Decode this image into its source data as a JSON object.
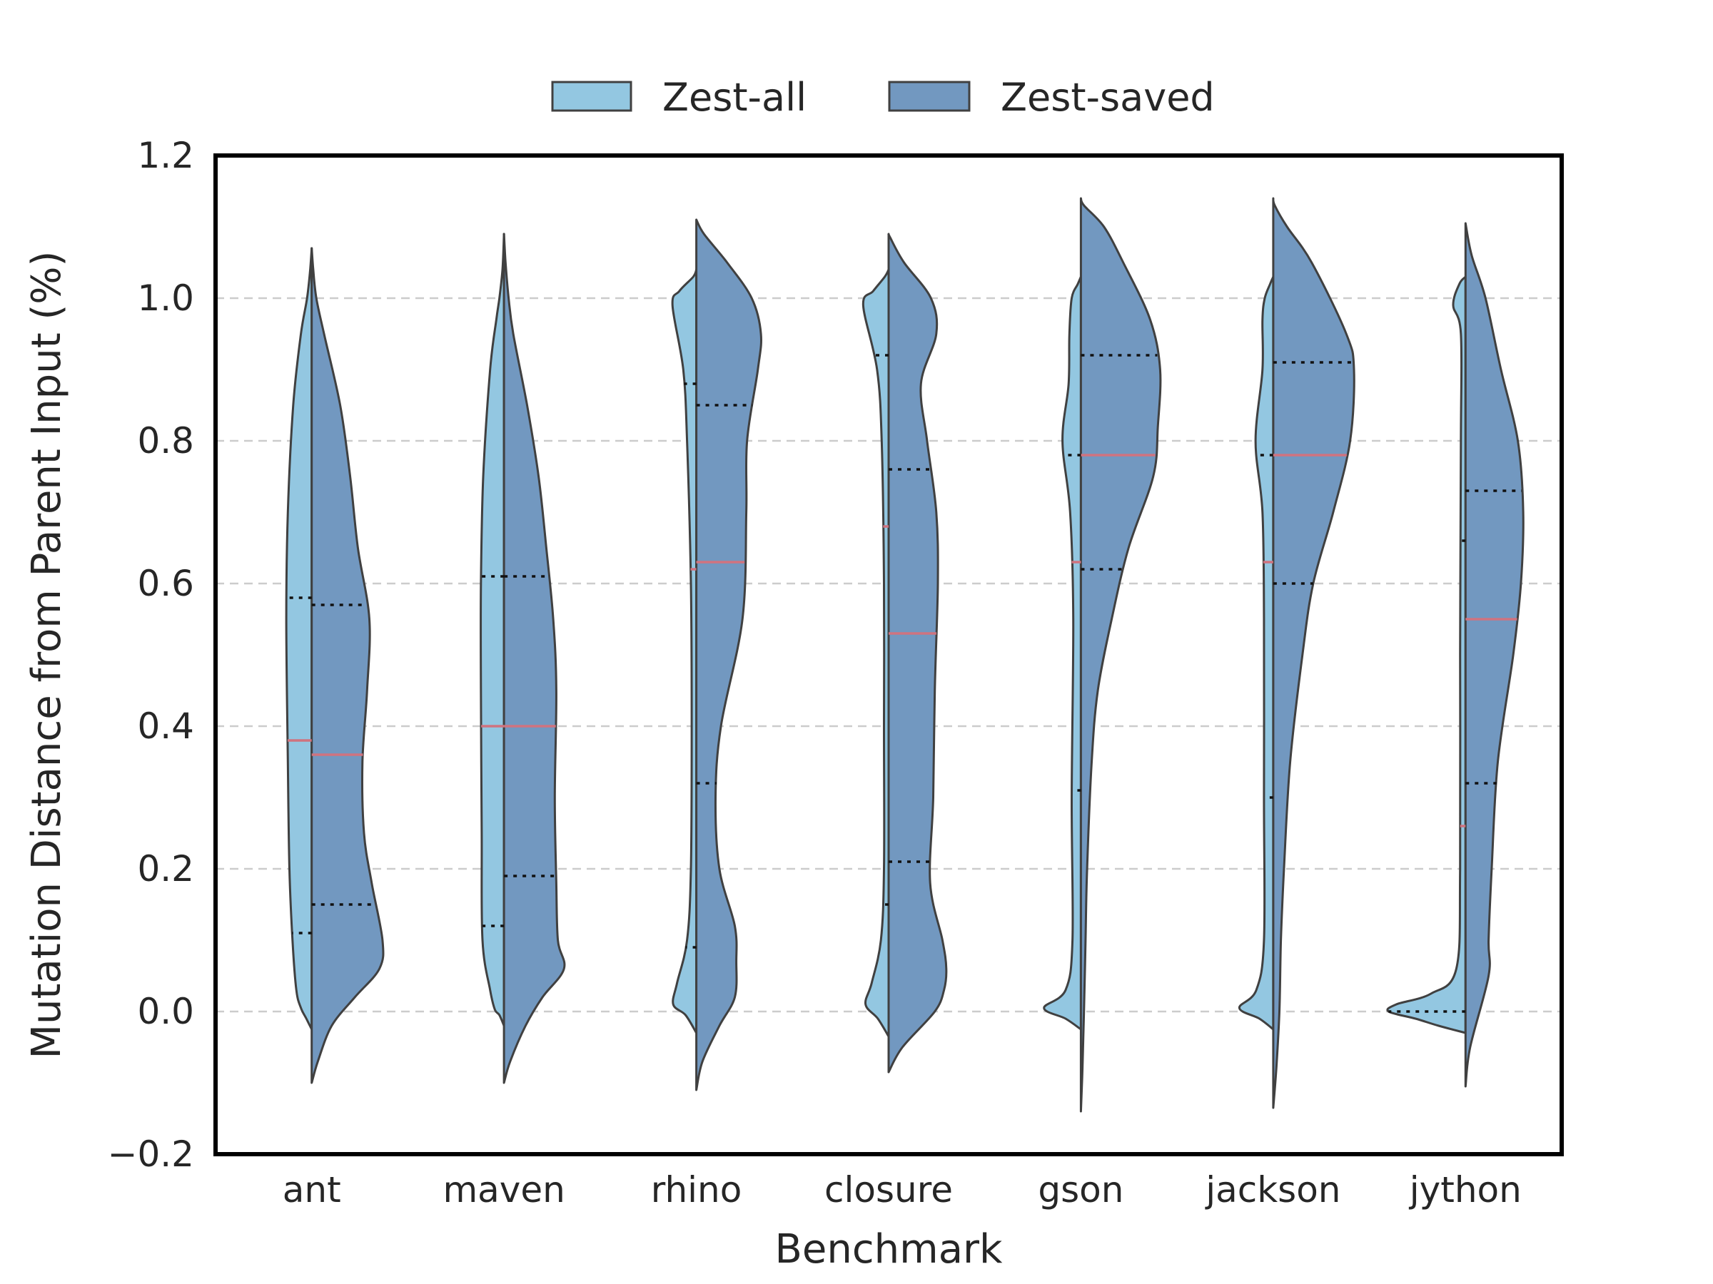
{
  "chart_data": {
    "type": "violin",
    "xlabel": "Benchmark",
    "ylabel": "Mutation Distance from Parent Input (%)",
    "ylim": [
      -0.2,
      1.2
    ],
    "yticks": [
      "−0.2",
      "0.0",
      "0.2",
      "0.4",
      "0.6",
      "0.8",
      "1.0",
      "1.2"
    ],
    "grid": "horizontal dashed",
    "legend_position": "top-center, outside",
    "categories": [
      "ant",
      "maven",
      "rhino",
      "closure",
      "gson",
      "jackson",
      "jython"
    ],
    "colors": {
      "zest_all": "#93c7e1",
      "zest_saved": "#7298c0",
      "median": "#d0737f",
      "outline": "#404040"
    },
    "series": [
      {
        "name": "Zest-all",
        "side": "left",
        "summary": [
          {
            "q1": 0.11,
            "median": 0.38,
            "q3": 0.58
          },
          {
            "q1": 0.12,
            "median": 0.4,
            "q3": 0.61
          },
          {
            "q1": 0.09,
            "median": 0.62,
            "q3": 0.88
          },
          {
            "q1": 0.15,
            "median": 0.68,
            "q3": 0.92
          },
          {
            "q1": 0.31,
            "median": 0.63,
            "q3": 0.78
          },
          {
            "q1": 0.3,
            "median": 0.63,
            "q3": 0.78
          },
          {
            "q1": 0.0,
            "median": 0.26,
            "q3": 0.66
          }
        ],
        "density": [
          [
            [
              -0.025,
              0
            ],
            [
              -0.01,
              0.07
            ],
            [
              0.005,
              0.14
            ],
            [
              0.03,
              0.2
            ],
            [
              0.1,
              0.25
            ],
            [
              0.2,
              0.29
            ],
            [
              0.35,
              0.31
            ],
            [
              0.55,
              0.33
            ],
            [
              0.7,
              0.31
            ],
            [
              0.85,
              0.24
            ],
            [
              0.95,
              0.14
            ],
            [
              1.0,
              0.06
            ],
            [
              1.04,
              0.02
            ],
            [
              1.07,
              0
            ]
          ],
          [
            [
              -0.02,
              0
            ],
            [
              -0.005,
              0.06
            ],
            [
              0.003,
              0.12
            ],
            [
              0.03,
              0.18
            ],
            [
              0.1,
              0.28
            ],
            [
              0.25,
              0.29
            ],
            [
              0.45,
              0.3
            ],
            [
              0.6,
              0.3
            ],
            [
              0.75,
              0.27
            ],
            [
              0.9,
              0.18
            ],
            [
              0.97,
              0.1
            ],
            [
              1.0,
              0.06
            ],
            [
              1.04,
              0.02
            ],
            [
              1.09,
              0
            ]
          ],
          [
            [
              -0.03,
              0
            ],
            [
              -0.005,
              0.14
            ],
            [
              0.01,
              0.3
            ],
            [
              0.04,
              0.25
            ],
            [
              0.1,
              0.12
            ],
            [
              0.2,
              0.07
            ],
            [
              0.4,
              0.06
            ],
            [
              0.6,
              0.07
            ],
            [
              0.8,
              0.12
            ],
            [
              0.9,
              0.17
            ],
            [
              0.99,
              0.31
            ],
            [
              1.01,
              0.22
            ],
            [
              1.03,
              0.04
            ],
            [
              1.04,
              0
            ]
          ],
          [
            [
              -0.035,
              0
            ],
            [
              -0.01,
              0.14
            ],
            [
              0.01,
              0.3
            ],
            [
              0.04,
              0.22
            ],
            [
              0.1,
              0.1
            ],
            [
              0.2,
              0.06
            ],
            [
              0.4,
              0.06
            ],
            [
              0.6,
              0.06
            ],
            [
              0.8,
              0.09
            ],
            [
              0.9,
              0.15
            ],
            [
              0.99,
              0.33
            ],
            [
              1.01,
              0.2
            ],
            [
              1.03,
              0.05
            ],
            [
              1.04,
              0
            ]
          ],
          [
            [
              -0.025,
              0
            ],
            [
              -0.01,
              0.2
            ],
            [
              0.005,
              0.48
            ],
            [
              0.03,
              0.2
            ],
            [
              0.1,
              0.11
            ],
            [
              0.3,
              0.12
            ],
            [
              0.55,
              0.1
            ],
            [
              0.7,
              0.14
            ],
            [
              0.8,
              0.24
            ],
            [
              0.88,
              0.16
            ],
            [
              0.95,
              0.15
            ],
            [
              1.0,
              0.12
            ],
            [
              1.02,
              0.04
            ],
            [
              1.03,
              0
            ]
          ],
          [
            [
              -0.025,
              0
            ],
            [
              -0.01,
              0.18
            ],
            [
              0.005,
              0.44
            ],
            [
              0.03,
              0.22
            ],
            [
              0.1,
              0.12
            ],
            [
              0.3,
              0.12
            ],
            [
              0.55,
              0.12
            ],
            [
              0.7,
              0.14
            ],
            [
              0.8,
              0.23
            ],
            [
              0.9,
              0.14
            ],
            [
              0.97,
              0.14
            ],
            [
              1.0,
              0.11
            ],
            [
              1.02,
              0.04
            ],
            [
              1.03,
              0
            ]
          ],
          [
            [
              -0.03,
              0
            ],
            [
              -0.02,
              0.35
            ],
            [
              -0.01,
              0.65
            ],
            [
              0.0,
              1.0
            ],
            [
              0.01,
              0.9
            ],
            [
              0.025,
              0.45
            ],
            [
              0.06,
              0.12
            ],
            [
              0.2,
              0.07
            ],
            [
              0.5,
              0.07
            ],
            [
              0.8,
              0.06
            ],
            [
              0.95,
              0.06
            ],
            [
              0.99,
              0.16
            ],
            [
              1.02,
              0.08
            ],
            [
              1.03,
              0
            ]
          ]
        ]
      },
      {
        "name": "Zest-saved",
        "side": "right",
        "summary": [
          {
            "q1": 0.15,
            "median": 0.36,
            "q3": 0.57
          },
          {
            "q1": 0.19,
            "median": 0.4,
            "q3": 0.61
          },
          {
            "q1": 0.32,
            "median": 0.63,
            "q3": 0.85
          },
          {
            "q1": 0.21,
            "median": 0.53,
            "q3": 0.76
          },
          {
            "q1": 0.62,
            "median": 0.78,
            "q3": 0.92
          },
          {
            "q1": 0.6,
            "median": 0.78,
            "q3": 0.91
          },
          {
            "q1": 0.32,
            "median": 0.55,
            "q3": 0.73
          }
        ],
        "density": [
          [
            [
              -0.1,
              0
            ],
            [
              -0.07,
              0.08
            ],
            [
              -0.02,
              0.26
            ],
            [
              0.02,
              0.56
            ],
            [
              0.06,
              0.88
            ],
            [
              0.1,
              0.92
            ],
            [
              0.18,
              0.78
            ],
            [
              0.25,
              0.68
            ],
            [
              0.35,
              0.66
            ],
            [
              0.45,
              0.72
            ],
            [
              0.55,
              0.75
            ],
            [
              0.65,
              0.6
            ],
            [
              0.75,
              0.5
            ],
            [
              0.85,
              0.37
            ],
            [
              0.95,
              0.16
            ],
            [
              1.0,
              0.06
            ],
            [
              1.04,
              0.02
            ],
            [
              1.07,
              0
            ]
          ],
          [
            [
              -0.1,
              0
            ],
            [
              -0.07,
              0.08
            ],
            [
              -0.02,
              0.28
            ],
            [
              0.02,
              0.5
            ],
            [
              0.06,
              0.78
            ],
            [
              0.1,
              0.7
            ],
            [
              0.18,
              0.68
            ],
            [
              0.3,
              0.66
            ],
            [
              0.45,
              0.68
            ],
            [
              0.55,
              0.64
            ],
            [
              0.65,
              0.55
            ],
            [
              0.75,
              0.45
            ],
            [
              0.85,
              0.3
            ],
            [
              0.95,
              0.12
            ],
            [
              1.0,
              0.06
            ],
            [
              1.05,
              0.02
            ],
            [
              1.09,
              0
            ]
          ],
          [
            [
              -0.11,
              0
            ],
            [
              -0.07,
              0.08
            ],
            [
              -0.02,
              0.3
            ],
            [
              0.02,
              0.5
            ],
            [
              0.07,
              0.52
            ],
            [
              0.12,
              0.5
            ],
            [
              0.2,
              0.3
            ],
            [
              0.3,
              0.25
            ],
            [
              0.4,
              0.32
            ],
            [
              0.55,
              0.6
            ],
            [
              0.7,
              0.65
            ],
            [
              0.8,
              0.66
            ],
            [
              0.9,
              0.8
            ],
            [
              0.95,
              0.84
            ],
            [
              1.0,
              0.72
            ],
            [
              1.05,
              0.4
            ],
            [
              1.09,
              0.1
            ],
            [
              1.11,
              0
            ]
          ],
          [
            [
              -0.085,
              0
            ],
            [
              -0.05,
              0.18
            ],
            [
              0.0,
              0.6
            ],
            [
              0.03,
              0.72
            ],
            [
              0.06,
              0.75
            ],
            [
              0.1,
              0.7
            ],
            [
              0.18,
              0.54
            ],
            [
              0.3,
              0.58
            ],
            [
              0.45,
              0.6
            ],
            [
              0.6,
              0.64
            ],
            [
              0.7,
              0.62
            ],
            [
              0.8,
              0.5
            ],
            [
              0.88,
              0.42
            ],
            [
              0.95,
              0.62
            ],
            [
              1.0,
              0.55
            ],
            [
              1.05,
              0.2
            ],
            [
              1.085,
              0.02
            ],
            [
              1.09,
              0
            ]
          ],
          [
            [
              -0.14,
              0
            ],
            [
              -0.08,
              0.02
            ],
            [
              0.0,
              0.04
            ],
            [
              0.1,
              0.06
            ],
            [
              0.2,
              0.08
            ],
            [
              0.35,
              0.14
            ],
            [
              0.45,
              0.22
            ],
            [
              0.55,
              0.4
            ],
            [
              0.65,
              0.62
            ],
            [
              0.75,
              0.94
            ],
            [
              0.82,
              1.0
            ],
            [
              0.9,
              1.03
            ],
            [
              0.97,
              0.9
            ],
            [
              1.05,
              0.55
            ],
            [
              1.1,
              0.3
            ],
            [
              1.13,
              0.04
            ],
            [
              1.14,
              0
            ]
          ],
          [
            [
              -0.135,
              0
            ],
            [
              -0.08,
              0.04
            ],
            [
              0.0,
              0.08
            ],
            [
              0.1,
              0.1
            ],
            [
              0.2,
              0.14
            ],
            [
              0.35,
              0.22
            ],
            [
              0.5,
              0.38
            ],
            [
              0.6,
              0.52
            ],
            [
              0.7,
              0.78
            ],
            [
              0.8,
              1.0
            ],
            [
              0.9,
              1.05
            ],
            [
              0.95,
              0.95
            ],
            [
              1.05,
              0.5
            ],
            [
              1.1,
              0.18
            ],
            [
              1.13,
              0.02
            ],
            [
              1.14,
              0
            ]
          ],
          [
            [
              -0.105,
              0
            ],
            [
              -0.05,
              0.06
            ],
            [
              0.05,
              0.3
            ],
            [
              0.1,
              0.3
            ],
            [
              0.2,
              0.34
            ],
            [
              0.35,
              0.42
            ],
            [
              0.5,
              0.62
            ],
            [
              0.6,
              0.72
            ],
            [
              0.7,
              0.75
            ],
            [
              0.8,
              0.68
            ],
            [
              0.9,
              0.46
            ],
            [
              1.0,
              0.26
            ],
            [
              1.06,
              0.08
            ],
            [
              1.105,
              0
            ]
          ]
        ]
      }
    ]
  }
}
